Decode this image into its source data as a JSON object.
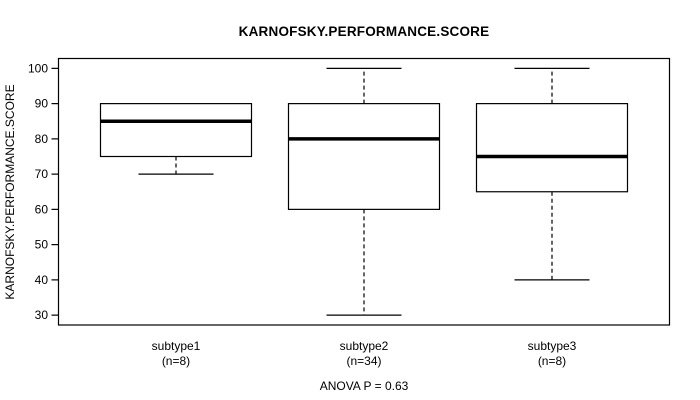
{
  "chart_data": {
    "type": "boxplot",
    "title": "KARNOFSKY.PERFORMANCE.SCORE",
    "ylabel": "KARNOFSKY.PERFORMANCE.SCORE",
    "xlabel": "",
    "annotation": "ANOVA P = 0.63",
    "ylim": [
      27.2,
      102.8
    ],
    "yticks": [
      30,
      40,
      50,
      60,
      70,
      80,
      90,
      100
    ],
    "grid": false,
    "legend": "none",
    "line_color": "#000000",
    "box_fill": "#ffffff",
    "groups": [
      {
        "label": "subtype1",
        "sublabel": "(n=8)",
        "n": 8,
        "whisker_low": 70,
        "q1": 75,
        "median": 85,
        "q3": 90,
        "whisker_high": 90
      },
      {
        "label": "subtype2",
        "sublabel": "(n=34)",
        "n": 34,
        "whisker_low": 30,
        "q1": 60,
        "median": 80,
        "q3": 90,
        "whisker_high": 100
      },
      {
        "label": "subtype3",
        "sublabel": "(n=8)",
        "n": 8,
        "whisker_low": 40,
        "q1": 65,
        "median": 75,
        "q3": 90,
        "whisker_high": 100
      }
    ]
  }
}
